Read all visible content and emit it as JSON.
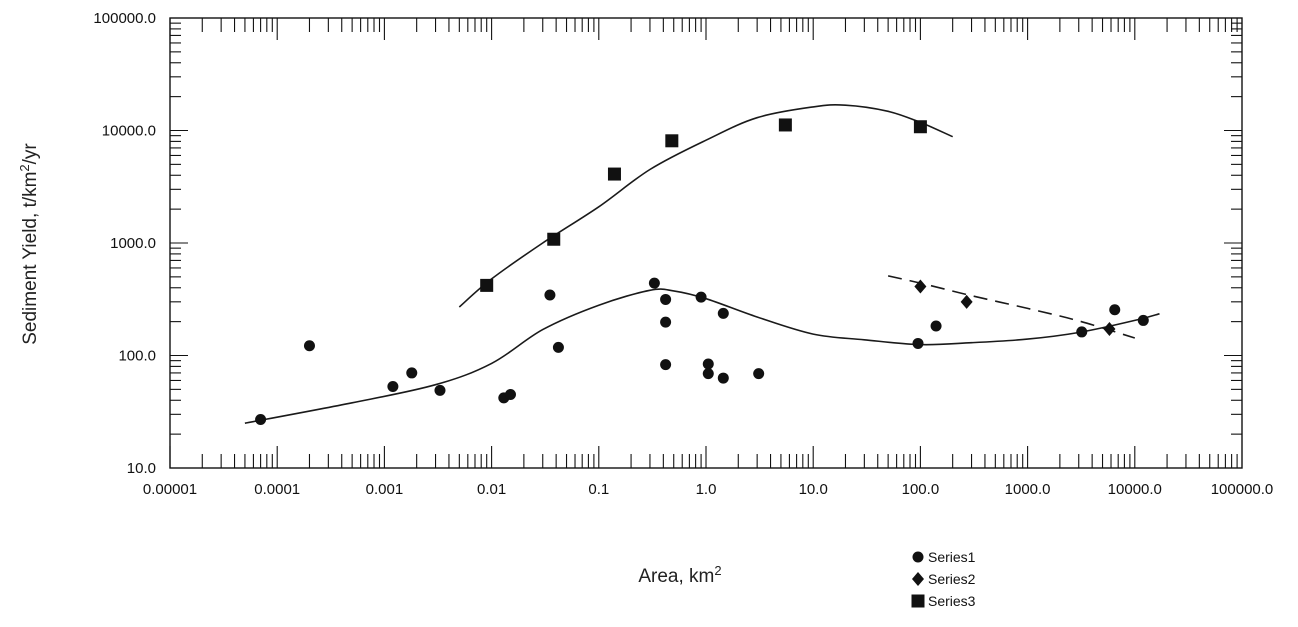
{
  "chart_data": {
    "type": "scatter",
    "xscale": "log",
    "yscale": "log",
    "xlim": [
      1e-05,
      100000
    ],
    "ylim": [
      10,
      100000
    ],
    "grid": false,
    "legend_position": "bottom-right",
    "xlabel": "Area, km",
    "xlabel_sup": "2",
    "ylabel": "Sediment Yield, t/km",
    "ylabel_sup": "2",
    "ylabel_suffix": "/yr",
    "xticks": [
      1e-05,
      0.0001,
      0.001,
      0.01,
      0.1,
      1,
      10,
      100,
      1000,
      10000,
      100000
    ],
    "xtick_labels": [
      "0.00001",
      "0.0001",
      "0.001",
      "0.01",
      "0.1",
      "1.0",
      "10.0",
      "100.0",
      "1000.0",
      "10000.0",
      "100000.0"
    ],
    "yticks": [
      10,
      100,
      1000,
      10000,
      100000
    ],
    "ytick_labels": [
      "10.0",
      "100.0",
      "1000.0",
      "10000.0",
      "100000.0"
    ],
    "series": [
      {
        "name": "Series1",
        "marker": "circle",
        "points": [
          [
            7e-05,
            27
          ],
          [
            0.0002,
            122
          ],
          [
            0.0012,
            53
          ],
          [
            0.0018,
            70
          ],
          [
            0.0033,
            49
          ],
          [
            0.013,
            42
          ],
          [
            0.015,
            45
          ],
          [
            0.035,
            345
          ],
          [
            0.042,
            118
          ],
          [
            0.33,
            440
          ],
          [
            0.42,
            315
          ],
          [
            0.42,
            198
          ],
          [
            0.42,
            83
          ],
          [
            0.9,
            330
          ],
          [
            1.05,
            84
          ],
          [
            1.05,
            69
          ],
          [
            1.45,
            237
          ],
          [
            1.45,
            63
          ],
          [
            3.1,
            69
          ],
          [
            95,
            128
          ],
          [
            140,
            183
          ],
          [
            3200,
            162
          ],
          [
            6500,
            255
          ],
          [
            12000,
            205
          ]
        ],
        "trend": [
          [
            5e-05,
            25
          ],
          [
            0.0005,
            38
          ],
          [
            0.003,
            55
          ],
          [
            0.01,
            85
          ],
          [
            0.03,
            170
          ],
          [
            0.1,
            280
          ],
          [
            0.3,
            380
          ],
          [
            0.5,
            375
          ],
          [
            1,
            320
          ],
          [
            3,
            220
          ],
          [
            10,
            155
          ],
          [
            30,
            138
          ],
          [
            100,
            125
          ],
          [
            300,
            130
          ],
          [
            1000,
            140
          ],
          [
            3000,
            160
          ],
          [
            10000,
            205
          ],
          [
            17000,
            235
          ]
        ]
      },
      {
        "name": "Series2",
        "marker": "diamond",
        "points": [
          [
            100,
            410
          ],
          [
            270,
            300
          ],
          [
            5800,
            172
          ]
        ],
        "trend": [
          [
            50,
            510
          ],
          [
            100,
            440
          ],
          [
            300,
            340
          ],
          [
            1000,
            262
          ],
          [
            3000,
            203
          ],
          [
            10000,
            143
          ]
        ]
      },
      {
        "name": "Series3",
        "marker": "square",
        "points": [
          [
            0.009,
            420
          ],
          [
            0.038,
            1080
          ],
          [
            0.14,
            4100
          ],
          [
            0.48,
            8100
          ],
          [
            5.5,
            11200
          ],
          [
            100,
            10800
          ]
        ],
        "trend": [
          [
            0.005,
            270
          ],
          [
            0.01,
            480
          ],
          [
            0.03,
            1000
          ],
          [
            0.1,
            2100
          ],
          [
            0.3,
            4500
          ],
          [
            1,
            8200
          ],
          [
            3,
            13000
          ],
          [
            10,
            16200
          ],
          [
            20,
            16800
          ],
          [
            50,
            14800
          ],
          [
            100,
            11800
          ],
          [
            200,
            8800
          ]
        ]
      }
    ]
  }
}
